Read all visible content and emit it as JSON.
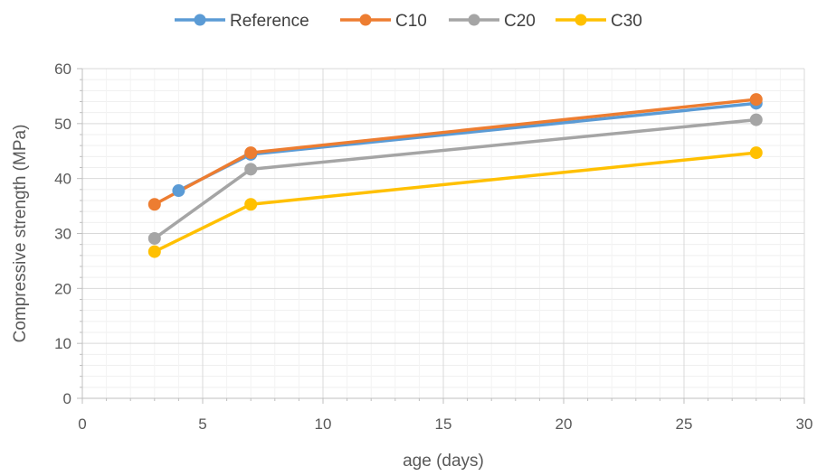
{
  "chart_data": {
    "type": "line",
    "title": "",
    "xlabel": "age (days)",
    "ylabel": "Compressive strength (MPa)",
    "xlim": [
      0,
      30
    ],
    "ylim": [
      0,
      60
    ],
    "x_ticks": [
      0,
      5,
      10,
      15,
      20,
      25,
      30
    ],
    "y_ticks": [
      0,
      10,
      20,
      30,
      40,
      50,
      60
    ],
    "grid": true,
    "legend_position": "top",
    "series": [
      {
        "name": "Reference",
        "color": "#5B9BD5",
        "points": [
          [
            4,
            37.8
          ],
          [
            7,
            44.4
          ],
          [
            28,
            53.7
          ]
        ]
      },
      {
        "name": "C10",
        "color": "#ED7D31",
        "points": [
          [
            3,
            35.3
          ],
          [
            7,
            44.7
          ],
          [
            28,
            54.4
          ]
        ]
      },
      {
        "name": "C20",
        "color": "#A5A5A5",
        "points": [
          [
            3,
            29.1
          ],
          [
            7,
            41.7
          ],
          [
            28,
            50.7
          ]
        ]
      },
      {
        "name": "C30",
        "color": "#FFC000",
        "points": [
          [
            3,
            26.7
          ],
          [
            7,
            35.3
          ],
          [
            28,
            44.7
          ]
        ]
      }
    ]
  }
}
